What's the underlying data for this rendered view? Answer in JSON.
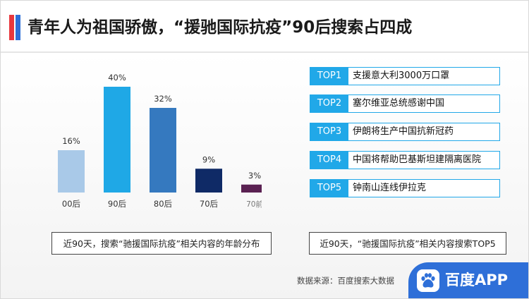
{
  "title": "青年人为祖国骄傲，“援驰国际抗疫”90后搜索占四成",
  "colors": {
    "accent_red": "#e8383d",
    "accent_blue": "#2e6fd8",
    "list_accent": "#21a8e8"
  },
  "chart_data": {
    "type": "bar",
    "categories": [
      "00后",
      "90后",
      "80后",
      "70后",
      "70前"
    ],
    "values": [
      16,
      40,
      32,
      9,
      3
    ],
    "value_labels": [
      "16%",
      "40%",
      "32%",
      "9%",
      "3%"
    ],
    "bar_colors": [
      "#a9c9e8",
      "#1fa8e6",
      "#3579bf",
      "#0f2a66",
      "#5a2152"
    ],
    "ylim": [
      0,
      40
    ],
    "grid": false
  },
  "chart_caption": "近90天，搜索“驰援国际抗疫”相关内容的年龄分布",
  "top_list": [
    {
      "rank": "TOP1",
      "text": "支援意大利3000万口罩"
    },
    {
      "rank": "TOP2",
      "text": "塞尔维亚总统感谢中国"
    },
    {
      "rank": "TOP3",
      "text": "伊朗将生产中国抗新冠药"
    },
    {
      "rank": "TOP4",
      "text": "中国将帮助巴基斯坦建隔离医院"
    },
    {
      "rank": "TOP5",
      "text": "钟南山连线伊拉克"
    }
  ],
  "list_caption": "近90天，“驰援国际抗疫”相关内容搜索TOP5",
  "source": "数据来源：百度搜索大数据",
  "brand": {
    "name": "百度APP",
    "icon": "baidu-paw-icon"
  }
}
